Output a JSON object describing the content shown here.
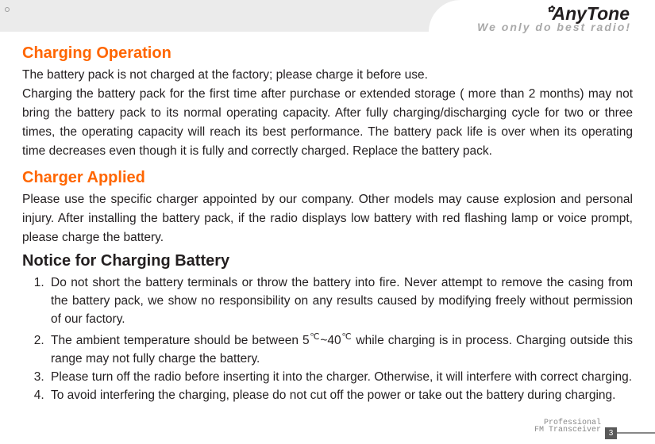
{
  "brand": {
    "gear": "✿",
    "name": "nyTone"
  },
  "slogan": "We only do best radio!",
  "s1": {
    "title": "Charging Operation",
    "p1": "The battery pack is not charged at the factory; please charge it before use.",
    "p2": "Charging the battery pack for the first time after purchase or extended storage ( more than 2 months) may not bring the battery pack to its normal operating capacity. After fully charging/discharging cycle for two or three times, the operating capacity will reach its best performance. The battery pack life is over when its operating time decreases even though it is fully and correctly charged. Replace the battery pack."
  },
  "s2": {
    "title": "Charger Applied",
    "p1": "Please use the specific charger appointed by our company. Other models may cause explosion and personal injury. After installing the battery pack, if the radio displays low battery with red flashing lamp or voice prompt, please charge the battery."
  },
  "s3": {
    "title": "Notice for Charging Battery",
    "li1": "Do not short the battery terminals or throw the battery into fire. Never attempt to remove the casing from the battery pack, we show no responsibility on any results caused by modifying freely without permission of our factory.",
    "li2a": "The ambient temperature should be between 5",
    "li2deg1": "℃",
    "li2mid": "~40",
    "li2deg2": "℃",
    "li2b": " while charging is in process. Charging outside this range may not fully charge the battery.",
    "li3": "Please turn off the radio before inserting it into the charger. Otherwise, it will interfere with correct charging.",
    "li4": "To avoid interfering the charging, please do not cut off the power or take out the battery during charging."
  },
  "footer": {
    "line1": "Professional",
    "line2": "FM Transceiver",
    "page": "3"
  }
}
